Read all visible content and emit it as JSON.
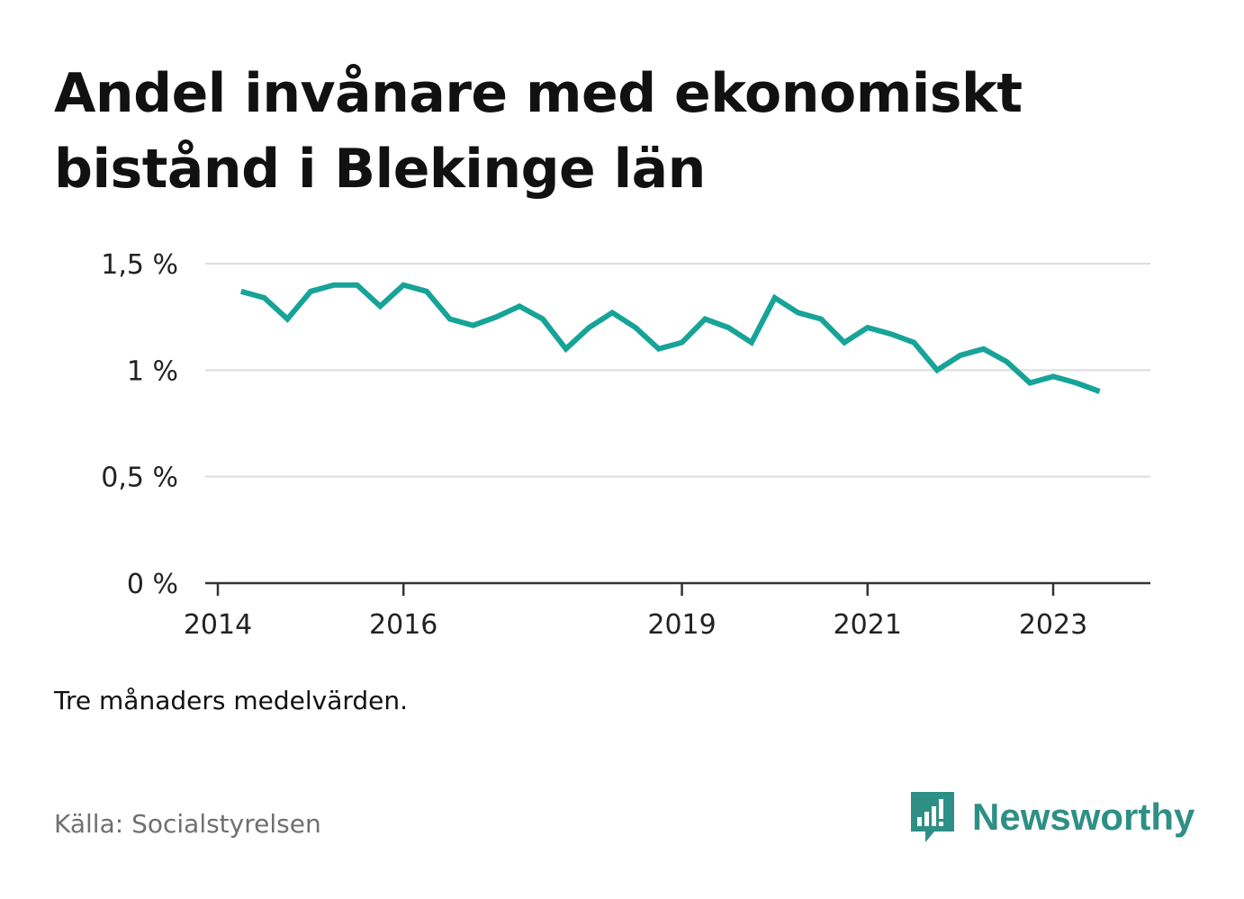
{
  "title": "Andel invånare med ekonomiskt bistånd i Blekinge län",
  "note": "Tre månaders medelvärden.",
  "source": "Källa: Socialstyrelsen",
  "brand": {
    "name": "Newsworthy",
    "logo_icon": "newsworthy-chart-bubble-icon",
    "color": "#2e8f86"
  },
  "chart_data": {
    "type": "line",
    "title": "Andel invånare med ekonomiskt bistånd i Blekinge län",
    "xlabel": "",
    "ylabel": "",
    "ylim": [
      0,
      1.5
    ],
    "y_ticks": [
      {
        "value": 0,
        "label": "0 %"
      },
      {
        "value": 0.5,
        "label": "0,5 %"
      },
      {
        "value": 1,
        "label": "1 %"
      },
      {
        "value": 1.5,
        "label": "1,5 %"
      }
    ],
    "xlim": [
      "2014-01",
      "2024-01"
    ],
    "x_ticks": [
      {
        "value": "2014-01",
        "label": "2014"
      },
      {
        "value": "2016-01",
        "label": "2016"
      },
      {
        "value": "2019-01",
        "label": "2019"
      },
      {
        "value": "2021-01",
        "label": "2021"
      },
      {
        "value": "2023-01",
        "label": "2023"
      }
    ],
    "grid": true,
    "line_color": "#17a398",
    "series": [
      {
        "name": "",
        "points": [
          {
            "x": "2014-04",
            "y": 1.37
          },
          {
            "x": "2014-07",
            "y": 1.34
          },
          {
            "x": "2014-10",
            "y": 1.24
          },
          {
            "x": "2015-01",
            "y": 1.37
          },
          {
            "x": "2015-04",
            "y": 1.4
          },
          {
            "x": "2015-07",
            "y": 1.4
          },
          {
            "x": "2015-10",
            "y": 1.3
          },
          {
            "x": "2016-01",
            "y": 1.4
          },
          {
            "x": "2016-04",
            "y": 1.37
          },
          {
            "x": "2016-07",
            "y": 1.24
          },
          {
            "x": "2016-10",
            "y": 1.21
          },
          {
            "x": "2017-01",
            "y": 1.25
          },
          {
            "x": "2017-04",
            "y": 1.3
          },
          {
            "x": "2017-07",
            "y": 1.24
          },
          {
            "x": "2017-10",
            "y": 1.1
          },
          {
            "x": "2018-01",
            "y": 1.2
          },
          {
            "x": "2018-04",
            "y": 1.27
          },
          {
            "x": "2018-07",
            "y": 1.2
          },
          {
            "x": "2018-10",
            "y": 1.1
          },
          {
            "x": "2019-01",
            "y": 1.13
          },
          {
            "x": "2019-04",
            "y": 1.24
          },
          {
            "x": "2019-07",
            "y": 1.2
          },
          {
            "x": "2019-10",
            "y": 1.13
          },
          {
            "x": "2020-01",
            "y": 1.34
          },
          {
            "x": "2020-04",
            "y": 1.27
          },
          {
            "x": "2020-07",
            "y": 1.24
          },
          {
            "x": "2020-10",
            "y": 1.13
          },
          {
            "x": "2021-01",
            "y": 1.2
          },
          {
            "x": "2021-04",
            "y": 1.17
          },
          {
            "x": "2021-07",
            "y": 1.13
          },
          {
            "x": "2021-10",
            "y": 1.0
          },
          {
            "x": "2022-01",
            "y": 1.07
          },
          {
            "x": "2022-04",
            "y": 1.1
          },
          {
            "x": "2022-07",
            "y": 1.04
          },
          {
            "x": "2022-10",
            "y": 0.94
          },
          {
            "x": "2023-01",
            "y": 0.97
          },
          {
            "x": "2023-04",
            "y": 0.94
          },
          {
            "x": "2023-07",
            "y": 0.9
          }
        ]
      }
    ]
  }
}
